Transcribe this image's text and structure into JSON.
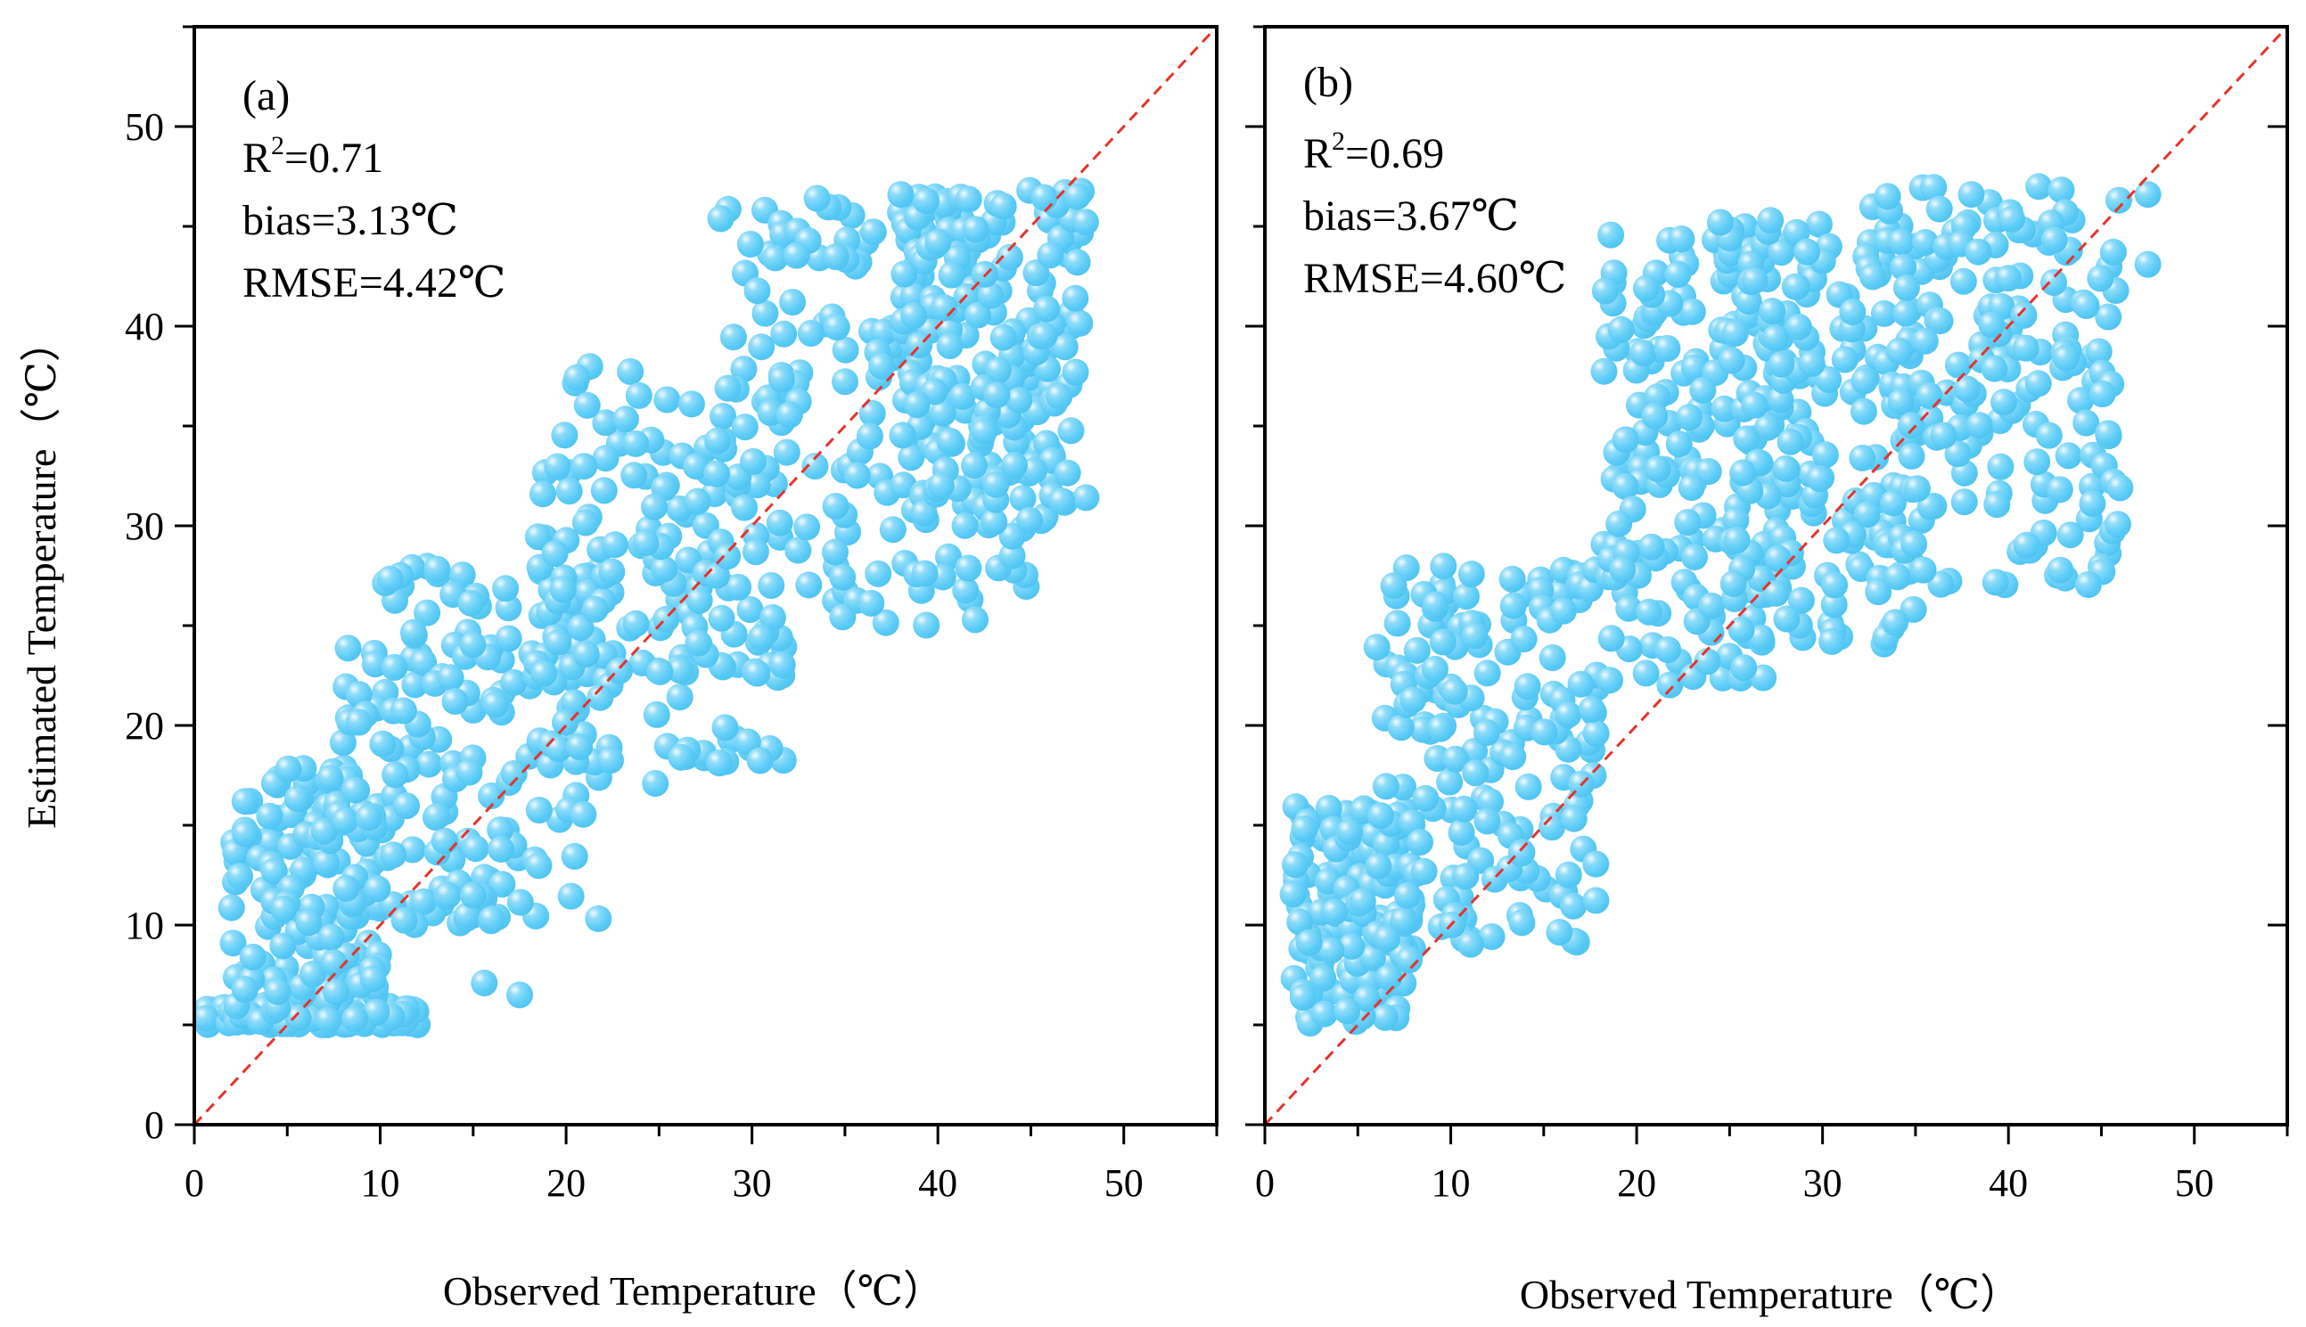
{
  "figure": {
    "y_axis_title": "Estimated Temperature（℃）",
    "x_axis_title": "Observed Temperature（℃）",
    "point_color": "#5ecdf7",
    "point_highlight": "#e8f8ff",
    "identity_line_color": "#e8322a"
  },
  "chart_data": [
    {
      "type": "scatter",
      "panel_label": "(a)",
      "stats": {
        "r2_prefix": "R",
        "r2_sup": "2",
        "r2_value": "=0.71",
        "bias": "bias=3.13℃",
        "rmse": "RMSE=4.42℃"
      },
      "xlabel": "Observed Temperature（℃）",
      "ylabel": "Estimated Temperature（℃）",
      "xlim": [
        0,
        55
      ],
      "ylim": [
        0,
        55
      ],
      "x_ticks": [
        0,
        10,
        20,
        30,
        40,
        50
      ],
      "y_ticks": [
        0,
        10,
        20,
        30,
        40,
        50
      ],
      "identity_line": [
        [
          0,
          0
        ],
        [
          55,
          55
        ]
      ],
      "scatter_clusters": [
        {
          "x_range": [
            0.5,
            12
          ],
          "y_range": [
            5,
            6
          ],
          "density": "high"
        },
        {
          "x_range": [
            2,
            10
          ],
          "y_range": [
            5,
            18
          ],
          "density": "high"
        },
        {
          "x_range": [
            8,
            22
          ],
          "y_range": [
            10,
            28
          ],
          "density": "high"
        },
        {
          "x_range": [
            18,
            32
          ],
          "y_range": [
            18,
            38
          ],
          "density": "high"
        },
        {
          "x_range": [
            28,
            46
          ],
          "y_range": [
            25,
            46
          ],
          "density": "high"
        },
        {
          "x_range": [
            38,
            48
          ],
          "y_range": [
            30,
            47
          ],
          "density": "high"
        }
      ],
      "outliers": [
        [
          15,
          11.5
        ],
        [
          16,
          10.3
        ],
        [
          15.6,
          7.1
        ],
        [
          17.5,
          6.5
        ],
        [
          16.5,
          13.8
        ],
        [
          24.8,
          17.1
        ],
        [
          26.2,
          18.4
        ],
        [
          30.5,
          24.4
        ],
        [
          33.5,
          46.4
        ],
        [
          38,
          46.6
        ],
        [
          47.5,
          43.2
        ],
        [
          47.5,
          46.5
        ]
      ]
    },
    {
      "type": "scatter",
      "panel_label": "(b)",
      "stats": {
        "r2_prefix": "R",
        "r2_sup": "2",
        "r2_value": "=0.69",
        "bias": "bias=3.67℃",
        "rmse": "RMSE=4.60℃"
      },
      "xlabel": "Observed Temperature（℃）",
      "ylabel": "",
      "xlim": [
        0,
        55
      ],
      "ylim": [
        0,
        55
      ],
      "x_ticks": [
        0,
        10,
        20,
        30,
        40,
        50
      ],
      "y_ticks": [
        0,
        10,
        20,
        30,
        40,
        50
      ],
      "identity_line": [
        [
          0,
          0
        ],
        [
          55,
          55
        ]
      ],
      "scatter_clusters": [
        {
          "x_range": [
            1.5,
            8
          ],
          "y_range": [
            5,
            16
          ],
          "density": "high"
        },
        {
          "x_range": [
            6,
            18
          ],
          "y_range": [
            9,
            28
          ],
          "density": "high"
        },
        {
          "x_range": [
            18,
            28
          ],
          "y_range": [
            22,
            45
          ],
          "density": "high"
        },
        {
          "x_range": [
            25,
            35
          ],
          "y_range": [
            24,
            46
          ],
          "density": "high"
        },
        {
          "x_range": [
            34,
            46
          ],
          "y_range": [
            27,
            47
          ],
          "density": "high"
        }
      ],
      "outliers": [
        [
          13.8,
          13.6
        ],
        [
          23.8,
          23.2
        ],
        [
          24.5,
          45.2
        ],
        [
          27.2,
          45.3
        ],
        [
          30.5,
          24.2
        ],
        [
          33.5,
          46.5
        ],
        [
          38,
          46.6
        ],
        [
          47.5,
          43.1
        ],
        [
          47.5,
          46.6
        ],
        [
          46,
          31.9
        ]
      ]
    }
  ]
}
